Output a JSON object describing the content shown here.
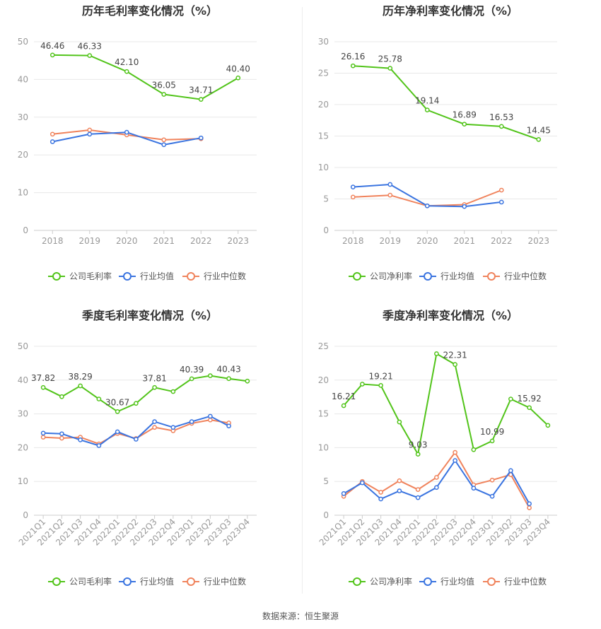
{
  "colors": {
    "company": "#52c41a",
    "industry_avg": "#3a74e0",
    "industry_median": "#f0835c",
    "axis": "#999999",
    "grid": "#e8e8e8"
  },
  "legend": {
    "company_gross": "公司毛利率",
    "company_net": "公司净利率",
    "industry_avg": "行业均值",
    "industry_median": "行业中位数"
  },
  "source": {
    "label": "数据来源：恒生聚源"
  },
  "chart_data": [
    {
      "type": "line",
      "title": "历年毛利率变化情况（%）",
      "categories": [
        "2018",
        "2019",
        "2020",
        "2021",
        "2022",
        "2023"
      ],
      "ylim": [
        0,
        50
      ],
      "yticks": [
        0,
        10,
        20,
        30,
        40,
        50
      ],
      "grid": true,
      "legend_position": "bottom",
      "series": [
        {
          "name": "公司毛利率",
          "values": [
            46.46,
            46.33,
            42.1,
            36.05,
            34.71,
            40.4
          ],
          "labels": [
            "46.46",
            "46.33",
            "42.10",
            "36.05",
            "34.71",
            "40.40"
          ]
        },
        {
          "name": "行业均值",
          "values": [
            23.5,
            25.5,
            26.0,
            22.7,
            24.5,
            null
          ]
        },
        {
          "name": "行业中位数",
          "values": [
            25.5,
            26.6,
            25.3,
            24.0,
            24.3,
            null
          ]
        }
      ]
    },
    {
      "type": "line",
      "title": "历年净利率变化情况（%）",
      "categories": [
        "2018",
        "2019",
        "2020",
        "2021",
        "2022",
        "2023"
      ],
      "ylim": [
        0,
        30
      ],
      "yticks": [
        0,
        5,
        10,
        15,
        20,
        25,
        30
      ],
      "grid": true,
      "legend_position": "bottom",
      "series": [
        {
          "name": "公司净利率",
          "values": [
            26.16,
            25.78,
            19.14,
            16.89,
            16.53,
            14.45
          ],
          "labels": [
            "26.16",
            "25.78",
            "19.14",
            "16.89",
            "16.53",
            "14.45"
          ]
        },
        {
          "name": "行业均值",
          "values": [
            6.9,
            7.3,
            3.9,
            3.8,
            4.5,
            null
          ]
        },
        {
          "name": "行业中位数",
          "values": [
            5.3,
            5.6,
            3.9,
            4.1,
            6.4,
            null
          ]
        }
      ]
    },
    {
      "type": "line",
      "title": "季度毛利率变化情况（%）",
      "categories": [
        "2021Q1",
        "2021Q2",
        "2021Q3",
        "2021Q4",
        "2022Q1",
        "2022Q2",
        "2022Q3",
        "2022Q4",
        "2023Q1",
        "2023Q2",
        "2023Q3",
        "2023Q4"
      ],
      "ylim": [
        0,
        50
      ],
      "yticks": [
        0,
        10,
        20,
        30,
        40,
        50
      ],
      "grid": true,
      "legend_position": "bottom",
      "series": [
        {
          "name": "公司毛利率",
          "values": [
            37.82,
            35.1,
            38.29,
            34.4,
            30.67,
            33.1,
            37.81,
            36.6,
            40.39,
            41.3,
            40.43,
            39.7
          ],
          "labels": [
            "37.82",
            "",
            "38.29",
            "",
            "30.67",
            "",
            "37.81",
            "",
            "40.39",
            "",
            "40.43",
            ""
          ]
        },
        {
          "name": "行业均值",
          "values": [
            24.3,
            24.1,
            22.3,
            20.6,
            24.7,
            22.5,
            27.7,
            26.0,
            27.7,
            29.3,
            26.4,
            null
          ]
        },
        {
          "name": "行业中位数",
          "values": [
            23.1,
            22.8,
            23.1,
            21.1,
            24.2,
            22.7,
            26.0,
            25.0,
            27.2,
            28.2,
            27.3,
            null
          ]
        }
      ]
    },
    {
      "type": "line",
      "title": "季度净利率变化情况（%）",
      "categories": [
        "2021Q1",
        "2021Q2",
        "2021Q3",
        "2021Q4",
        "2022Q1",
        "2022Q2",
        "2022Q3",
        "2022Q4",
        "2023Q1",
        "2023Q2",
        "2023Q3",
        "2023Q4"
      ],
      "ylim": [
        0,
        25
      ],
      "yticks": [
        0,
        5,
        10,
        15,
        20,
        25
      ],
      "grid": true,
      "legend_position": "bottom",
      "series": [
        {
          "name": "公司净利率",
          "values": [
            16.21,
            19.4,
            19.21,
            13.8,
            9.03,
            23.9,
            22.31,
            9.7,
            10.99,
            17.2,
            15.92,
            13.3
          ],
          "labels": [
            "16.21",
            "",
            "19.21",
            "",
            "9.03",
            "",
            "22.31",
            "",
            "10.99",
            "",
            "15.92",
            ""
          ]
        },
        {
          "name": "行业均值",
          "values": [
            3.2,
            4.8,
            2.4,
            3.6,
            2.6,
            4.1,
            8.1,
            4.0,
            2.8,
            6.6,
            1.7,
            null
          ]
        },
        {
          "name": "行业中位数",
          "values": [
            2.8,
            5.0,
            3.4,
            5.1,
            3.8,
            5.6,
            9.3,
            4.5,
            5.2,
            6.0,
            1.1,
            null
          ]
        }
      ]
    }
  ]
}
